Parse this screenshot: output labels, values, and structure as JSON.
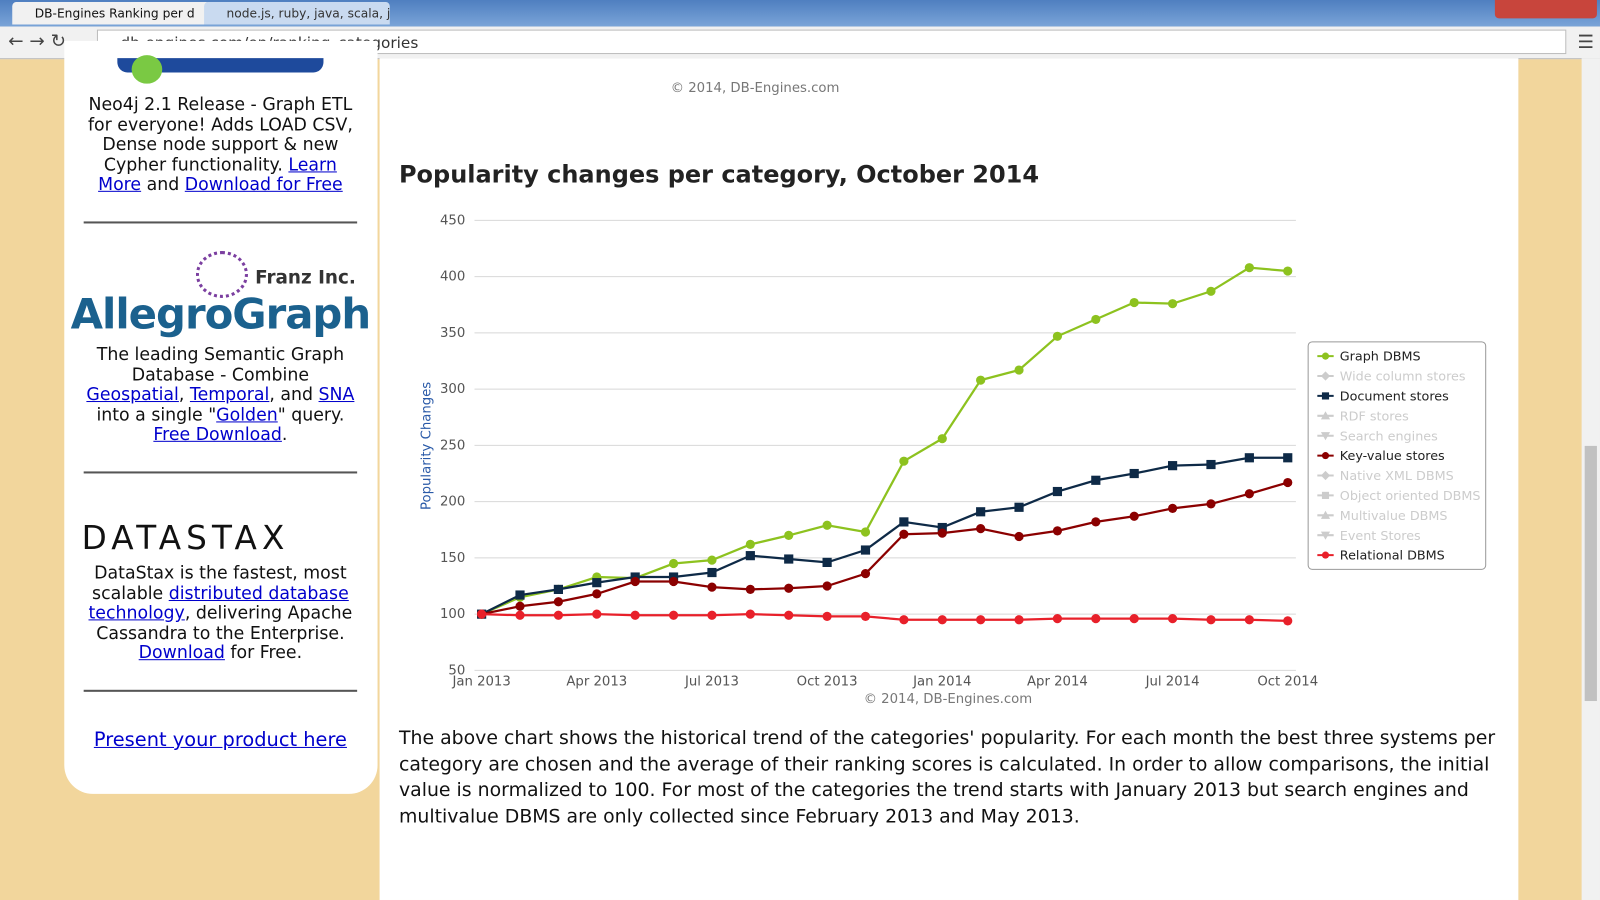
{
  "browser": {
    "tabs": [
      "DB-Engines Ranking per d",
      "node.js, ruby, java, scala, j"
    ],
    "url": "db-engines.com/en/ranking_categories"
  },
  "page": {
    "top_credit": "© 2014, DB-Engines.com",
    "logos": {
      "franz": "Franz Inc.",
      "allegro": "AllegroGraph",
      "datastax": "DATASTAX"
    },
    "sidebar": [
      {
        "parts": [
          {
            "text": "Neo4j 2.1 Release - Graph ETL for everyone! Adds LOAD CSV, Dense node support & new Cypher functionality. ",
            "link": false
          },
          {
            "text": "Learn More",
            "link": true
          },
          {
            "text": " and ",
            "link": false
          },
          {
            "text": "Download for Free",
            "link": true
          }
        ]
      },
      {
        "parts": [
          {
            "text": "The leading Semantic Graph Database - Combine ",
            "link": false
          },
          {
            "text": "Geospatial",
            "link": true
          },
          {
            "text": ", ",
            "link": false
          },
          {
            "text": "Temporal",
            "link": true
          },
          {
            "text": ", and ",
            "link": false
          },
          {
            "text": "SNA",
            "link": true
          },
          {
            "text": " into a single \"",
            "link": false
          },
          {
            "text": "Golden",
            "link": true
          },
          {
            "text": "\" query. ",
            "link": false
          },
          {
            "text": "Free Download",
            "link": true
          },
          {
            "text": ".",
            "link": false
          }
        ]
      },
      {
        "parts": [
          {
            "text": "DataStax is the fastest, most scalable ",
            "link": false
          },
          {
            "text": "distributed database technology",
            "link": true
          },
          {
            "text": ", delivering Apache Cassandra to the Enterprise. ",
            "link": false
          },
          {
            "text": "Download",
            "link": true
          },
          {
            "text": " for Free.",
            "link": false
          }
        ]
      },
      {
        "parts": [
          {
            "text": "Present your product here",
            "link": true
          }
        ]
      }
    ],
    "description": "The above chart shows the historical trend of the categories' popularity. For each month the best three systems per category are chosen and the average of their ranking scores is calculated. In order to allow comparisons, the initial value is normalized to 100. For most of the categories the trend starts with January 2013 but search engines and multivalue DBMS are only collected since February 2013 and May 2013."
  },
  "chart_data": {
    "type": "line",
    "title": "Popularity changes per category, October 2014",
    "y_label": "Popularity Changes",
    "credit": "© 2014, DB-Engines.com",
    "categories": [
      "Jan 2013",
      null,
      null,
      "Apr 2013",
      null,
      null,
      "Jul 2013",
      null,
      null,
      "Oct 2013",
      null,
      null,
      "Jan 2014",
      null,
      null,
      "Apr 2014",
      null,
      null,
      "Jul 2014",
      null,
      null,
      "Oct 2014"
    ],
    "ylim": [
      50,
      450
    ],
    "yticks": [
      50,
      100,
      150,
      200,
      250,
      300,
      350,
      400,
      450
    ],
    "grid": true,
    "legend": "right",
    "series": [
      {
        "name": "Graph DBMS",
        "color": "#8dc21f",
        "marker": "circle",
        "visible": true,
        "values": [
          100,
          115,
          122,
          133,
          132,
          145,
          148,
          162,
          170,
          179,
          173,
          236,
          256,
          308,
          317,
          347,
          362,
          377,
          376,
          387,
          408,
          405
        ]
      },
      {
        "name": "Wide column stores",
        "color": "#cccccc",
        "marker": "diamond",
        "visible": false
      },
      {
        "name": "Document stores",
        "color": "#0e2a47",
        "marker": "square",
        "visible": true,
        "values": [
          100,
          117,
          122,
          128,
          133,
          133,
          137,
          152,
          149,
          146,
          157,
          182,
          177,
          191,
          195,
          209,
          219,
          225,
          232,
          233,
          239,
          239
        ]
      },
      {
        "name": "RDF stores",
        "color": "#cccccc",
        "marker": "triangle",
        "visible": false
      },
      {
        "name": "Search engines",
        "color": "#cccccc",
        "marker": "triangle-down",
        "visible": false
      },
      {
        "name": "Key-value stores",
        "color": "#8b0000",
        "marker": "circle",
        "visible": true,
        "values": [
          100,
          107,
          111,
          118,
          129,
          129,
          124,
          122,
          123,
          125,
          136,
          171,
          172,
          176,
          169,
          174,
          182,
          187,
          194,
          198,
          207,
          217
        ]
      },
      {
        "name": "Native XML DBMS",
        "color": "#cccccc",
        "marker": "diamond",
        "visible": false
      },
      {
        "name": "Object oriented DBMS",
        "color": "#cccccc",
        "marker": "square",
        "visible": false
      },
      {
        "name": "Multivalue DBMS",
        "color": "#cccccc",
        "marker": "triangle",
        "visible": false
      },
      {
        "name": "Event Stores",
        "color": "#cccccc",
        "marker": "triangle-down",
        "visible": false
      },
      {
        "name": "Relational DBMS",
        "color": "#e8202a",
        "marker": "circle",
        "visible": true,
        "values": [
          100,
          99,
          99,
          100,
          99,
          99,
          99,
          100,
          99,
          98,
          98,
          95,
          95,
          95,
          95,
          96,
          96,
          96,
          96,
          95,
          95,
          94
        ]
      }
    ]
  }
}
